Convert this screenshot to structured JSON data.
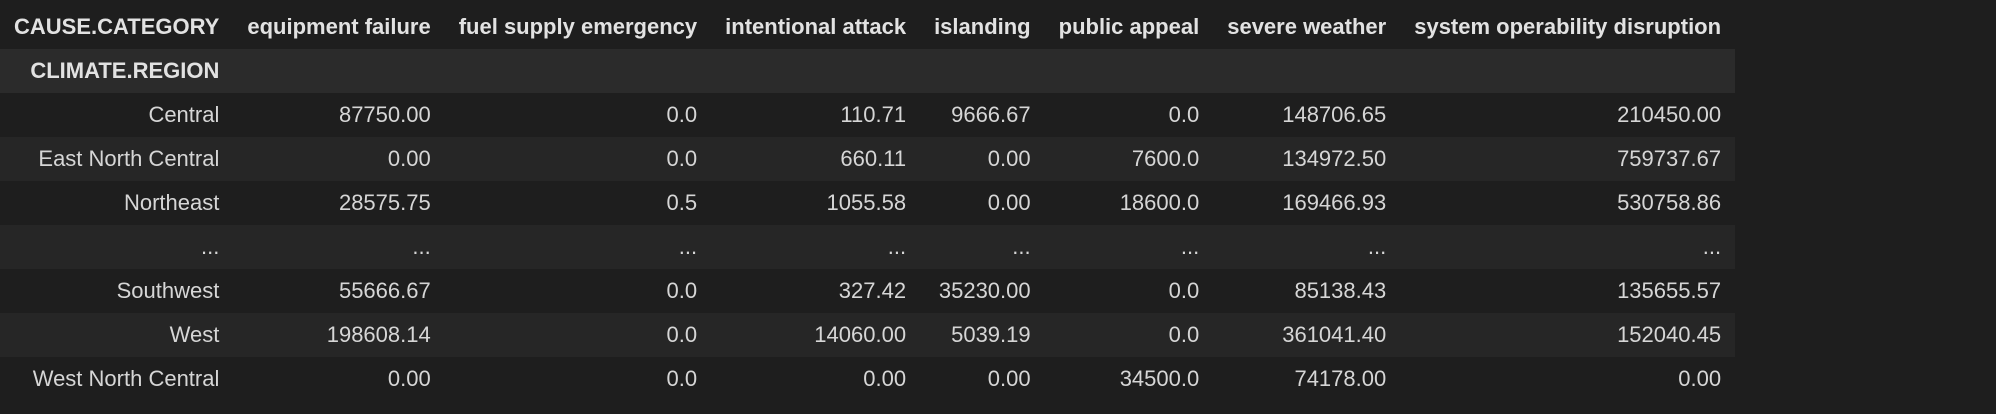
{
  "table": {
    "columns_name": "CAUSE.CATEGORY",
    "index_name": "CLIMATE.REGION",
    "columns": [
      "equipment failure",
      "fuel supply emergency",
      "intentional attack",
      "islanding",
      "public appeal",
      "severe weather",
      "system operability disruption"
    ],
    "rows": [
      {
        "index": "Central",
        "values": [
          "87750.00",
          "0.0",
          "110.71",
          "9666.67",
          "0.0",
          "148706.65",
          "210450.00"
        ]
      },
      {
        "index": "East North Central",
        "values": [
          "0.00",
          "0.0",
          "660.11",
          "0.00",
          "7600.0",
          "134972.50",
          "759737.67"
        ]
      },
      {
        "index": "Northeast",
        "values": [
          "28575.75",
          "0.5",
          "1055.58",
          "0.00",
          "18600.0",
          "169466.93",
          "530758.86"
        ]
      },
      {
        "index": "...",
        "values": [
          "...",
          "...",
          "...",
          "...",
          "...",
          "...",
          "..."
        ]
      },
      {
        "index": "Southwest",
        "values": [
          "55666.67",
          "0.0",
          "327.42",
          "35230.00",
          "0.0",
          "85138.43",
          "135655.57"
        ]
      },
      {
        "index": "West",
        "values": [
          "198608.14",
          "0.0",
          "14060.00",
          "5039.19",
          "0.0",
          "361041.40",
          "152040.45"
        ]
      },
      {
        "index": "West North Central",
        "values": [
          "0.00",
          "0.0",
          "0.00",
          "0.00",
          "34500.0",
          "74178.00",
          "0.00"
        ]
      }
    ]
  }
}
